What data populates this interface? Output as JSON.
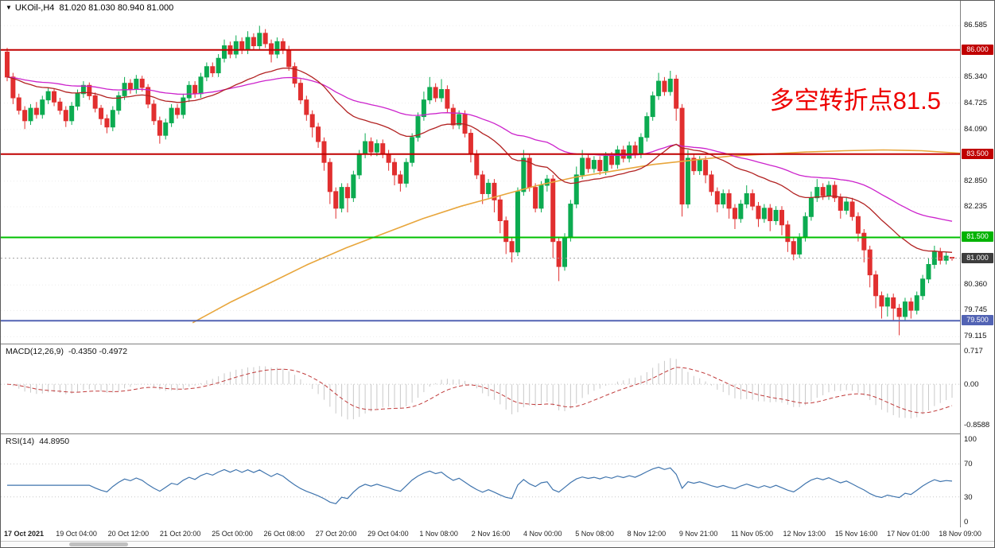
{
  "header": {
    "dropdown_icon": "▼",
    "symbol": "UKOil-,H4",
    "ohlc": "81.020 81.030 80.940 81.000"
  },
  "annotation": {
    "text": "多空转折点81.5",
    "color": "#ee0000"
  },
  "colors": {
    "bull": "#0cab51",
    "bear": "#e12f2f",
    "ma_fast": "#b22222",
    "ma_mid": "#cc22cc",
    "ma_slow": "#e8a63c",
    "macd_hist": "#c9c9c9",
    "macd_signal": "#c03a3a",
    "rsi_line": "#3f74ad",
    "resistance": "#c00000",
    "support_green": "#00c000",
    "support_blue": "#5263b4",
    "current_price_badge": "#3d3d3d"
  },
  "price_scale": {
    "ticks": [
      86.585,
      85.34,
      84.725,
      84.09,
      82.85,
      82.235,
      80.36,
      79.745,
      79.115
    ],
    "badges": [
      {
        "value": "86.000",
        "price": 86.0,
        "bg": "#c00000"
      },
      {
        "value": "83.500",
        "price": 83.5,
        "bg": "#c00000"
      },
      {
        "value": "81.500",
        "price": 81.5,
        "bg": "#00b300"
      },
      {
        "value": "81.000",
        "price": 81.0,
        "bg": "#3d3d3d"
      },
      {
        "value": "79.500",
        "price": 79.5,
        "bg": "#5263b4"
      }
    ]
  },
  "hlines": [
    {
      "price": 86.0,
      "color": "#c00000",
      "style": "solid",
      "width": 2
    },
    {
      "price": 83.5,
      "color": "#c00000",
      "style": "solid",
      "width": 2
    },
    {
      "price": 81.5,
      "color": "#00c000",
      "style": "solid",
      "width": 2
    },
    {
      "price": 81.0,
      "color": "#a0a0a0",
      "style": "dot",
      "width": 1
    },
    {
      "price": 79.5,
      "color": "#5263b4",
      "style": "solid",
      "width": 2
    }
  ],
  "macd": {
    "label": "MACD(12,26,9)",
    "values": "-0.4350 -0.4972"
  },
  "rsi": {
    "label": "RSI(14)",
    "value": "44.8950"
  },
  "x_axis": {
    "labels": [
      "17 Oct 2021",
      "19 Oct 04:00",
      "20 Oct 12:00",
      "21 Oct 20:00",
      "25 Oct 00:00",
      "26 Oct 08:00",
      "27 Oct 20:00",
      "29 Oct 04:00",
      "1 Nov 08:00",
      "2 Nov 16:00",
      "4 Nov 00:00",
      "5 Nov 08:00",
      "8 Nov 12:00",
      "9 Nov 21:00",
      "11 Nov 05:00",
      "12 Nov 13:00",
      "15 Nov 16:00",
      "17 Nov 01:00",
      "18 Nov 09:00"
    ]
  },
  "chart_data": [
    {
      "type": "candlestick",
      "title": "UKOil-,H4",
      "timeframe": "H4",
      "ylim": [
        78.95,
        87.18
      ],
      "last_price": 81.0,
      "hlines": [
        86.0,
        83.5,
        81.5,
        81.0,
        79.5
      ],
      "overlays": [
        {
          "name": "ma-fast-red",
          "type": "ema",
          "period": 30,
          "color": "#b22222"
        },
        {
          "name": "ma-mid-magenta",
          "type": "ema",
          "period": 65,
          "color": "#cc22cc"
        },
        {
          "name": "ma-slow-orange",
          "type": "keypoints",
          "color": "#e8a63c",
          "points": [
            [
              0.2,
              79.45
            ],
            [
              0.24,
              79.95
            ],
            [
              0.28,
              80.4
            ],
            [
              0.32,
              80.85
            ],
            [
              0.36,
              81.25
            ],
            [
              0.4,
              81.6
            ],
            [
              0.44,
              81.95
            ],
            [
              0.48,
              82.25
            ],
            [
              0.52,
              82.5
            ],
            [
              0.56,
              82.75
            ],
            [
              0.6,
              82.95
            ],
            [
              0.64,
              83.1
            ],
            [
              0.68,
              83.25
            ],
            [
              0.72,
              83.35
            ],
            [
              0.76,
              83.45
            ],
            [
              0.8,
              83.5
            ],
            [
              0.84,
              83.55
            ],
            [
              0.88,
              83.58
            ],
            [
              0.92,
              83.6
            ],
            [
              0.96,
              83.58
            ],
            [
              1.0,
              83.52
            ]
          ]
        }
      ],
      "candles": [
        [
          85.95,
          86.05,
          85.25,
          85.35
        ],
        [
          85.35,
          85.45,
          84.7,
          84.85
        ],
        [
          84.85,
          84.95,
          84.45,
          84.55
        ],
        [
          84.55,
          84.65,
          84.1,
          84.3
        ],
        [
          84.3,
          84.7,
          84.2,
          84.6
        ],
        [
          84.6,
          84.75,
          84.35,
          84.45
        ],
        [
          84.45,
          84.9,
          84.35,
          84.8
        ],
        [
          84.8,
          85.1,
          84.7,
          85.0
        ],
        [
          85.0,
          85.08,
          84.65,
          84.75
        ],
        [
          84.75,
          84.85,
          84.45,
          84.55
        ],
        [
          84.55,
          84.65,
          84.15,
          84.3
        ],
        [
          84.3,
          84.75,
          84.2,
          84.65
        ],
        [
          84.65,
          85.05,
          84.55,
          84.95
        ],
        [
          84.95,
          85.25,
          84.85,
          85.15
        ],
        [
          85.15,
          85.22,
          84.8,
          84.9
        ],
        [
          84.9,
          84.98,
          84.5,
          84.6
        ],
        [
          84.6,
          84.68,
          84.2,
          84.35
        ],
        [
          84.35,
          84.45,
          84.0,
          84.15
        ],
        [
          84.15,
          84.65,
          84.05,
          84.55
        ],
        [
          84.55,
          85.0,
          84.45,
          84.9
        ],
        [
          84.9,
          85.35,
          84.8,
          85.2
        ],
        [
          85.2,
          85.3,
          84.95,
          85.05
        ],
        [
          85.05,
          85.4,
          84.95,
          85.3
        ],
        [
          85.3,
          85.38,
          85.0,
          85.1
        ],
        [
          85.1,
          85.18,
          84.6,
          84.7
        ],
        [
          84.7,
          84.8,
          84.2,
          84.3
        ],
        [
          84.3,
          84.4,
          83.75,
          83.95
        ],
        [
          83.95,
          84.35,
          83.85,
          84.25
        ],
        [
          84.25,
          84.7,
          84.15,
          84.6
        ],
        [
          84.6,
          84.7,
          84.35,
          84.45
        ],
        [
          84.45,
          84.95,
          84.35,
          84.85
        ],
        [
          84.85,
          85.25,
          84.75,
          85.15
        ],
        [
          85.15,
          85.25,
          84.85,
          84.95
        ],
        [
          84.95,
          85.45,
          84.85,
          85.35
        ],
        [
          85.35,
          85.7,
          85.25,
          85.6
        ],
        [
          85.6,
          85.7,
          85.35,
          85.45
        ],
        [
          85.45,
          85.9,
          85.35,
          85.8
        ],
        [
          85.8,
          86.25,
          85.7,
          86.1
        ],
        [
          86.1,
          86.2,
          85.8,
          85.9
        ],
        [
          85.9,
          86.35,
          85.8,
          86.2
        ],
        [
          86.2,
          86.3,
          85.9,
          86.0
        ],
        [
          86.0,
          86.45,
          85.9,
          86.3
        ],
        [
          86.3,
          86.4,
          86.0,
          86.1
        ],
        [
          86.1,
          86.58,
          86.0,
          86.4
        ],
        [
          86.4,
          86.5,
          86.05,
          86.15
        ],
        [
          86.15,
          86.25,
          85.7,
          85.9
        ],
        [
          85.9,
          86.3,
          85.8,
          86.2
        ],
        [
          86.2,
          86.28,
          85.9,
          86.0
        ],
        [
          86.0,
          86.1,
          85.5,
          85.6
        ],
        [
          85.6,
          85.7,
          85.1,
          85.2
        ],
        [
          85.2,
          85.3,
          84.7,
          84.8
        ],
        [
          84.8,
          84.9,
          84.3,
          84.45
        ],
        [
          84.45,
          84.55,
          83.9,
          84.15
        ],
        [
          84.15,
          84.25,
          83.65,
          83.8
        ],
        [
          83.8,
          83.9,
          83.1,
          83.3
        ],
        [
          83.3,
          83.4,
          82.3,
          82.6
        ],
        [
          82.6,
          82.7,
          81.95,
          82.2
        ],
        [
          82.2,
          82.8,
          82.1,
          82.7
        ],
        [
          82.7,
          82.8,
          82.1,
          82.45
        ],
        [
          82.45,
          83.1,
          82.35,
          83.0
        ],
        [
          83.0,
          83.6,
          82.9,
          83.5
        ],
        [
          83.5,
          84.0,
          83.4,
          83.8
        ],
        [
          83.8,
          83.9,
          83.45,
          83.55
        ],
        [
          83.55,
          83.85,
          83.45,
          83.75
        ],
        [
          83.75,
          83.85,
          83.4,
          83.5
        ],
        [
          83.5,
          83.6,
          83.1,
          83.3
        ],
        [
          83.3,
          83.4,
          82.75,
          83.0
        ],
        [
          83.0,
          83.1,
          82.6,
          82.8
        ],
        [
          82.8,
          83.4,
          82.7,
          83.3
        ],
        [
          83.3,
          84.0,
          83.2,
          83.9
        ],
        [
          83.9,
          84.5,
          83.8,
          84.4
        ],
        [
          84.4,
          85.0,
          84.3,
          84.8
        ],
        [
          84.8,
          85.35,
          84.7,
          85.1
        ],
        [
          85.1,
          85.2,
          84.75,
          84.85
        ],
        [
          84.85,
          85.3,
          84.75,
          85.05
        ],
        [
          85.05,
          85.15,
          84.5,
          84.6
        ],
        [
          84.6,
          84.7,
          84.1,
          84.2
        ],
        [
          84.2,
          84.55,
          84.1,
          84.45
        ],
        [
          84.45,
          84.55,
          83.9,
          84.0
        ],
        [
          84.0,
          84.1,
          83.3,
          83.5
        ],
        [
          83.5,
          83.6,
          82.9,
          83.0
        ],
        [
          83.0,
          83.1,
          82.3,
          82.55
        ],
        [
          82.55,
          82.9,
          82.45,
          82.8
        ],
        [
          82.8,
          82.9,
          82.1,
          82.4
        ],
        [
          82.4,
          82.5,
          81.6,
          81.9
        ],
        [
          81.9,
          82.0,
          81.1,
          81.4
        ],
        [
          81.4,
          81.5,
          80.9,
          81.15
        ],
        [
          81.15,
          82.7,
          81.05,
          82.6
        ],
        [
          82.6,
          83.6,
          82.5,
          83.4
        ],
        [
          83.4,
          83.5,
          82.6,
          82.7
        ],
        [
          82.7,
          82.8,
          82.1,
          82.2
        ],
        [
          82.2,
          82.85,
          82.1,
          82.75
        ],
        [
          82.75,
          83.0,
          82.6,
          82.9
        ],
        [
          82.9,
          83.0,
          81.0,
          81.4
        ],
        [
          81.4,
          81.5,
          80.45,
          80.8
        ],
        [
          80.8,
          81.6,
          80.7,
          81.5
        ],
        [
          81.5,
          82.4,
          81.4,
          82.3
        ],
        [
          82.3,
          83.2,
          82.2,
          83.0
        ],
        [
          83.0,
          83.6,
          82.9,
          83.4
        ],
        [
          83.4,
          83.5,
          83.05,
          83.15
        ],
        [
          83.15,
          83.45,
          83.05,
          83.35
        ],
        [
          83.35,
          83.45,
          83.0,
          83.1
        ],
        [
          83.1,
          83.55,
          83.0,
          83.45
        ],
        [
          83.45,
          83.55,
          83.15,
          83.25
        ],
        [
          83.25,
          83.7,
          83.15,
          83.6
        ],
        [
          83.6,
          83.7,
          83.3,
          83.4
        ],
        [
          83.4,
          83.8,
          83.3,
          83.7
        ],
        [
          83.7,
          83.8,
          83.4,
          83.5
        ],
        [
          83.5,
          84.0,
          83.4,
          83.9
        ],
        [
          83.9,
          84.5,
          83.8,
          84.4
        ],
        [
          84.4,
          85.0,
          84.3,
          84.9
        ],
        [
          84.9,
          85.45,
          84.8,
          85.25
        ],
        [
          85.25,
          85.35,
          84.9,
          85.0
        ],
        [
          85.0,
          85.5,
          84.9,
          85.3
        ],
        [
          85.3,
          85.4,
          84.3,
          84.6
        ],
        [
          84.6,
          84.7,
          82.0,
          82.3
        ],
        [
          82.3,
          83.6,
          82.2,
          83.4
        ],
        [
          83.4,
          83.5,
          83.0,
          83.1
        ],
        [
          83.1,
          83.45,
          83.0,
          83.35
        ],
        [
          83.35,
          83.45,
          82.8,
          83.0
        ],
        [
          83.0,
          83.1,
          82.5,
          82.6
        ],
        [
          82.6,
          82.7,
          82.1,
          82.3
        ],
        [
          82.3,
          82.65,
          82.2,
          82.55
        ],
        [
          82.55,
          82.65,
          81.95,
          82.2
        ],
        [
          82.2,
          82.3,
          81.7,
          81.95
        ],
        [
          81.95,
          82.4,
          81.85,
          82.3
        ],
        [
          82.3,
          82.75,
          82.2,
          82.55
        ],
        [
          82.55,
          82.65,
          82.15,
          82.25
        ],
        [
          82.25,
          82.35,
          81.75,
          81.95
        ],
        [
          81.95,
          82.3,
          81.85,
          82.2
        ],
        [
          82.2,
          82.3,
          81.65,
          81.9
        ],
        [
          81.9,
          82.25,
          81.8,
          82.15
        ],
        [
          82.15,
          82.25,
          81.55,
          81.8
        ],
        [
          81.8,
          81.9,
          81.15,
          81.4
        ],
        [
          81.4,
          81.5,
          80.95,
          81.1
        ],
        [
          81.1,
          81.6,
          81.0,
          81.5
        ],
        [
          81.5,
          82.1,
          81.4,
          82.0
        ],
        [
          82.0,
          82.6,
          81.9,
          82.45
        ],
        [
          82.45,
          82.9,
          82.35,
          82.7
        ],
        [
          82.7,
          82.8,
          82.4,
          82.5
        ],
        [
          82.5,
          82.85,
          82.4,
          82.75
        ],
        [
          82.75,
          82.85,
          82.35,
          82.45
        ],
        [
          82.45,
          82.55,
          81.95,
          82.15
        ],
        [
          82.15,
          82.45,
          82.05,
          82.35
        ],
        [
          82.35,
          82.45,
          81.9,
          82.0
        ],
        [
          82.0,
          82.1,
          81.4,
          81.6
        ],
        [
          81.6,
          81.7,
          80.9,
          81.2
        ],
        [
          81.2,
          81.3,
          80.3,
          80.6
        ],
        [
          80.6,
          80.7,
          79.8,
          80.1
        ],
        [
          80.1,
          80.2,
          79.55,
          79.85
        ],
        [
          79.85,
          80.15,
          79.6,
          80.05
        ],
        [
          80.05,
          80.15,
          79.5,
          79.8
        ],
        [
          79.8,
          79.9,
          79.15,
          79.6
        ],
        [
          79.6,
          80.05,
          79.5,
          79.95
        ],
        [
          79.95,
          80.05,
          79.55,
          79.75
        ],
        [
          79.75,
          80.2,
          79.65,
          80.1
        ],
        [
          80.1,
          80.6,
          80.0,
          80.5
        ],
        [
          80.5,
          81.0,
          80.4,
          80.85
        ],
        [
          80.85,
          81.3,
          80.75,
          81.15
        ],
        [
          81.15,
          81.25,
          80.85,
          80.95
        ],
        [
          80.95,
          81.15,
          80.85,
          81.05
        ],
        [
          81.02,
          81.03,
          80.94,
          81.0
        ]
      ]
    },
    {
      "type": "bar",
      "name": "MACD",
      "label": "MACD(12,26,9)",
      "params": [
        12,
        26,
        9
      ],
      "current_macd": -0.435,
      "current_signal": -0.4972,
      "ylim": [
        -1.05,
        0.85
      ],
      "scale_labels": [
        "0.717",
        "0.00",
        "-0.8588"
      ]
    },
    {
      "type": "line",
      "name": "RSI",
      "label": "RSI(14)",
      "period": 14,
      "current": 44.895,
      "ylim": [
        0,
        100
      ],
      "levels": [
        70,
        30
      ],
      "scale_labels": [
        "100",
        "70",
        "30",
        "0"
      ]
    }
  ]
}
